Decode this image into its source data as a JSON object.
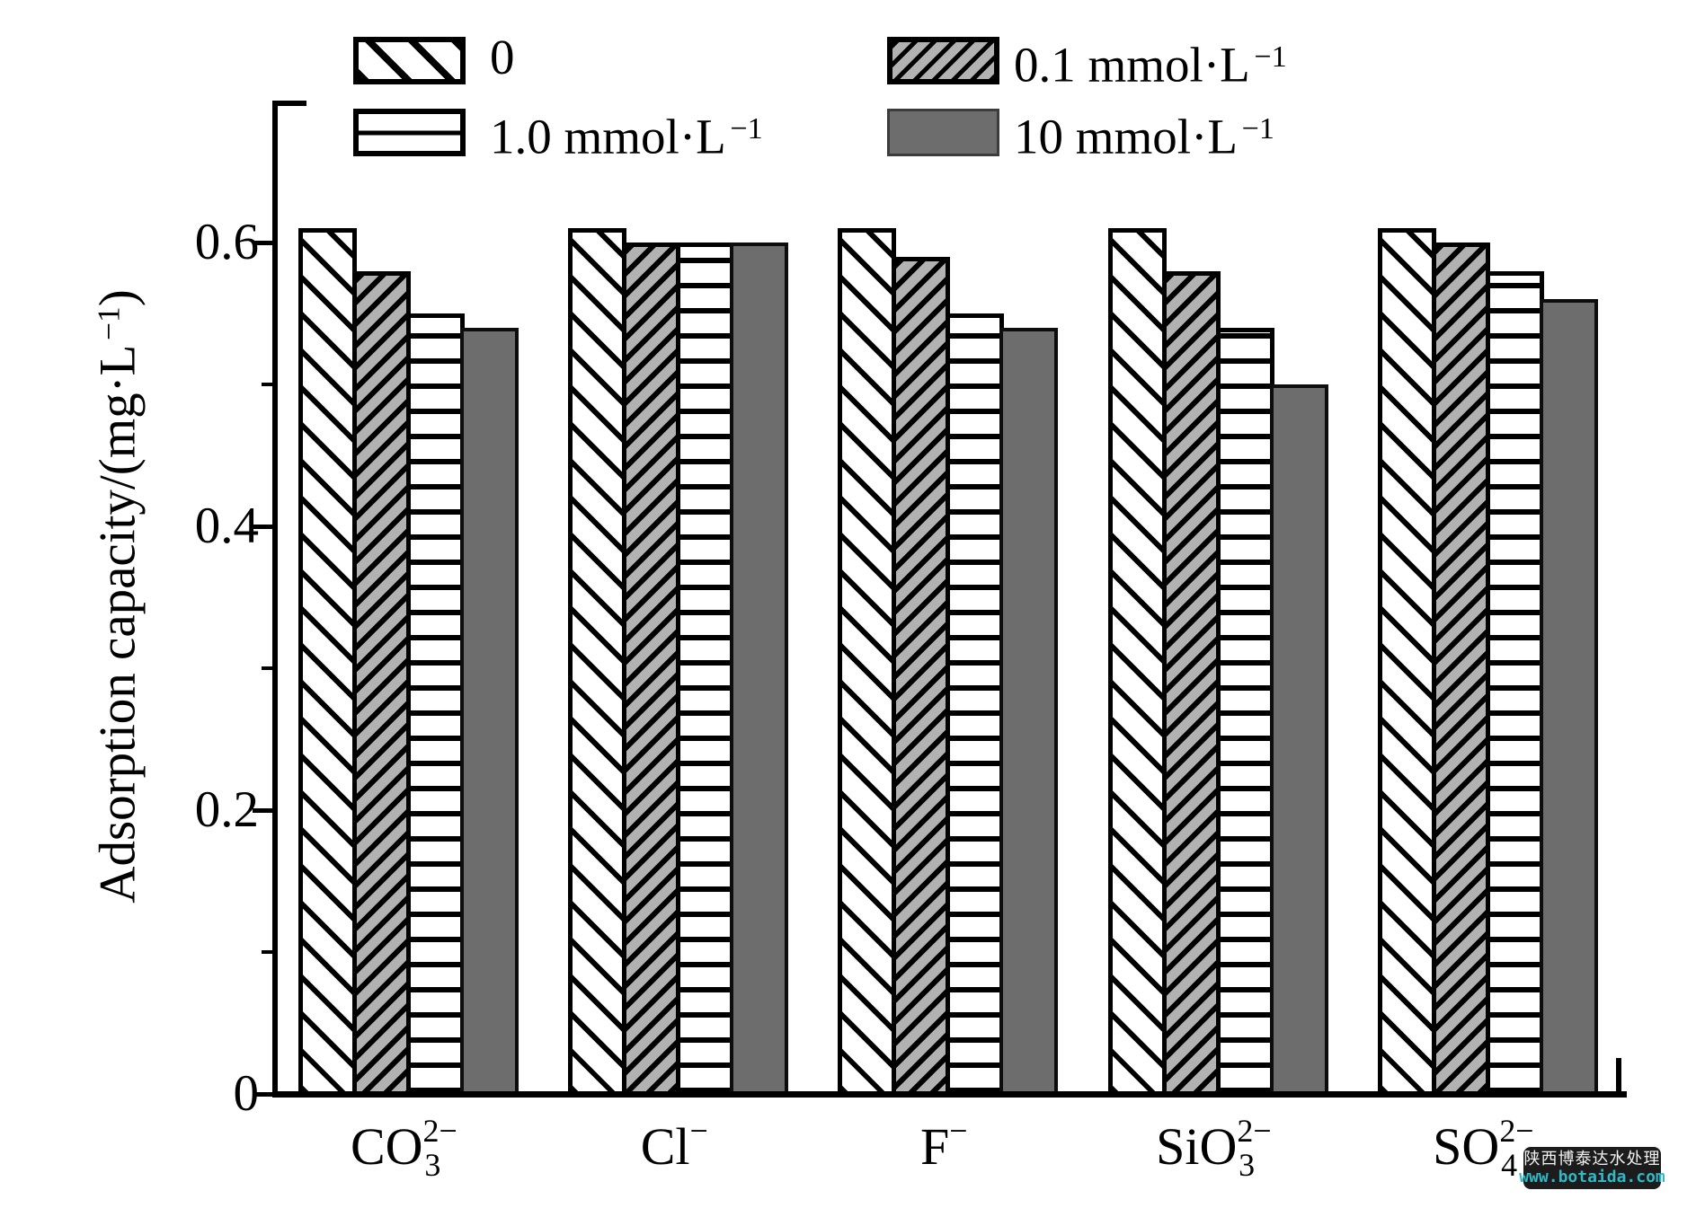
{
  "chart_data": {
    "type": "bar",
    "title": "",
    "ylabel": "Adsorption capacity/(mg·L−1)",
    "ylabel_prefix": "Adsorption capacity/(mg·L",
    "ylabel_sup": "−1",
    "ylabel_close": ")",
    "xlabel": "",
    "ylim": [
      0,
      0.7
    ],
    "yticks_major": [
      0,
      0.2,
      0.4,
      0.6
    ],
    "ytick_labels": [
      "0",
      "0.2",
      "0.4",
      "0.6"
    ],
    "yticks_minor": [
      0.1,
      0.3,
      0.5
    ],
    "grid": false,
    "legend_position": "top",
    "categories": [
      "CO₃²⁻",
      "Cl⁻",
      "F⁻",
      "SiO₃²⁻",
      "SO₄²⁻"
    ],
    "category_parts": [
      {
        "key": "co3",
        "base": "CO",
        "sup": "2−",
        "sub": "3"
      },
      {
        "key": "cl",
        "base": "Cl",
        "sup": "−",
        "sub": ""
      },
      {
        "key": "f",
        "base": "F",
        "sup": "−",
        "sub": ""
      },
      {
        "key": "sio3",
        "base": "SiO",
        "sup": "2−",
        "sub": "3"
      },
      {
        "key": "so4",
        "base": "SO",
        "sup": "2−",
        "sub": "4"
      }
    ],
    "series": [
      {
        "name": "0",
        "label_text": "0",
        "label_sup": "",
        "pattern": "diag-back",
        "fill": "#ffffff",
        "hatch": "#000000",
        "values": [
          0.61,
          0.61,
          0.61,
          0.61,
          0.61
        ]
      },
      {
        "name": "0.1 mmol·L−1",
        "label_text": "0.1 mmol·L",
        "label_sup": "−1",
        "pattern": "diag-fwd",
        "fill": "#b2b2b2",
        "hatch": "#000000",
        "values": [
          0.58,
          0.6,
          0.59,
          0.58,
          0.6
        ]
      },
      {
        "name": "1.0 mmol·L−1",
        "label_text": "1.0 mmol·L",
        "label_sup": "−1",
        "pattern": "horiz",
        "fill": "#ffffff",
        "hatch": "#000000",
        "values": [
          0.55,
          0.6,
          0.55,
          0.54,
          0.58
        ]
      },
      {
        "name": "10 mmol·L−1",
        "label_text": "10 mmol·L",
        "label_sup": "−1",
        "pattern": "solid",
        "fill": "#6d6d6d",
        "hatch": null,
        "values": [
          0.54,
          0.6,
          0.54,
          0.5,
          0.56
        ]
      }
    ]
  },
  "watermark": {
    "line1": "陕西博泰达水处理",
    "line2": "www.botaida.com",
    "bg": "#1c1c1c",
    "line1_color": "#f2f2f2",
    "line2_color": "#2fb8c6"
  },
  "colors": {
    "axis": "#000000",
    "hatch_gray": "#b2b2b2",
    "solid_gray": "#6d6d6d"
  }
}
